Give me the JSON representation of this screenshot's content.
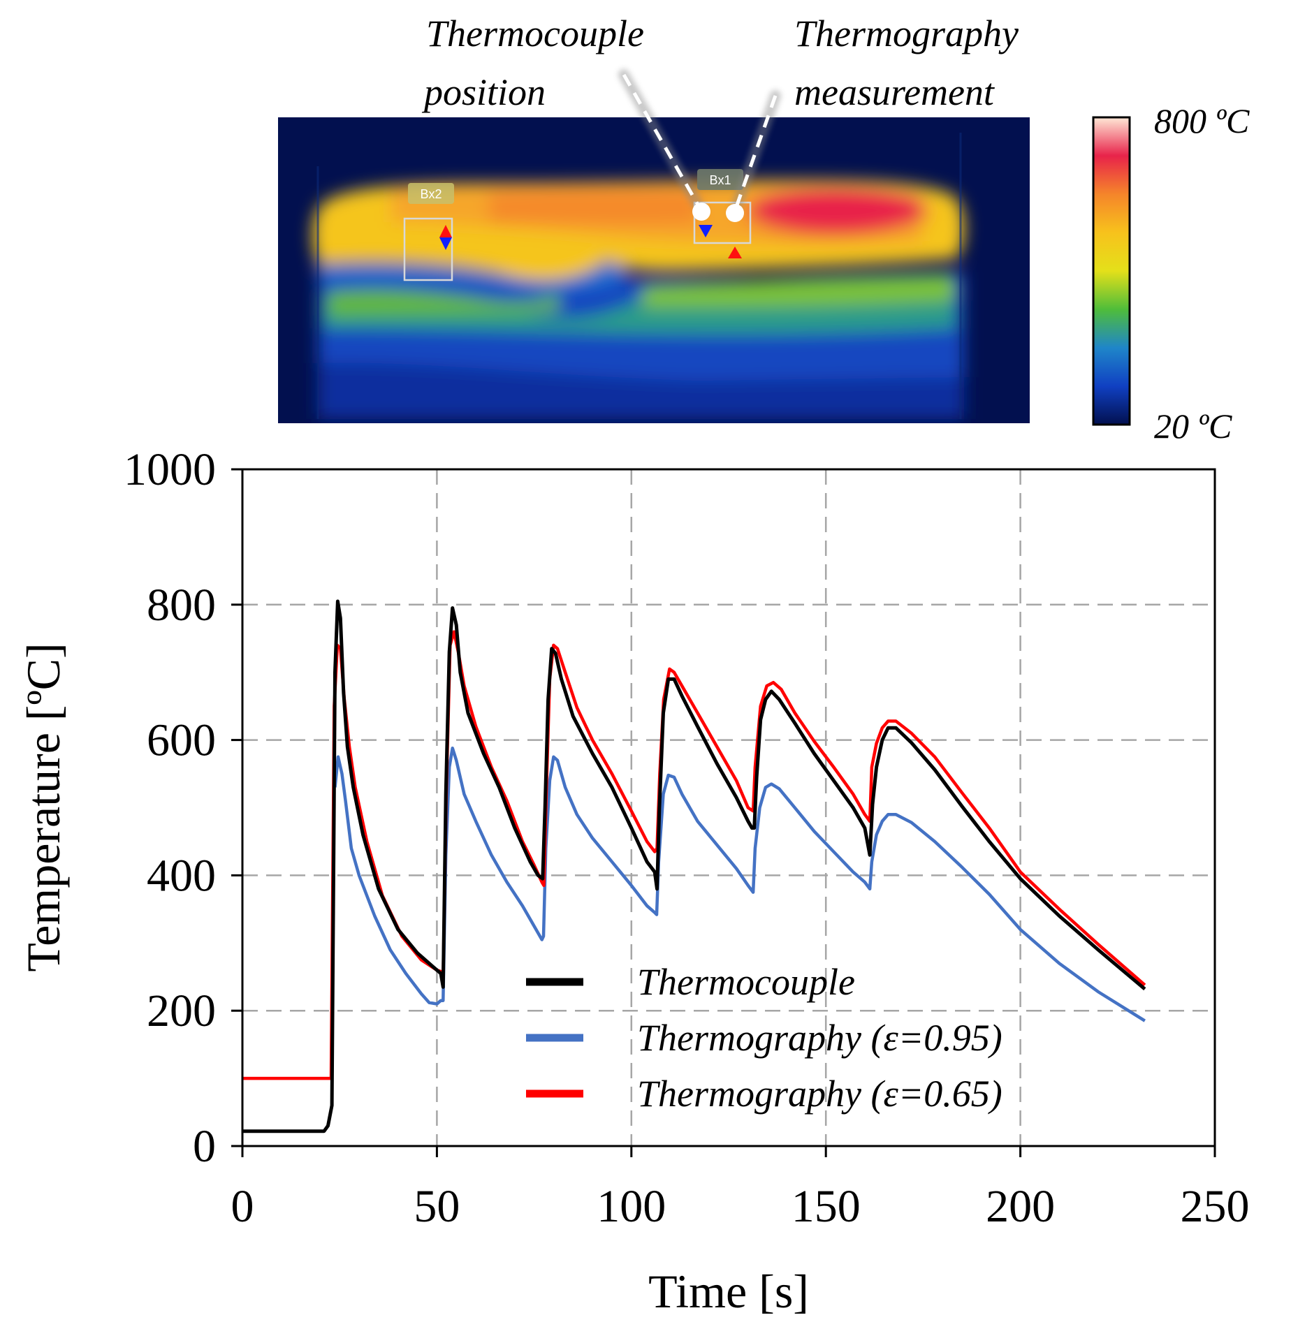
{
  "thermal_image": {
    "annotations": {
      "thermocouple_line1": "Thermocouple",
      "thermocouple_line2": "position",
      "thermography_line1": "Thermography",
      "thermography_line2": "measurement"
    },
    "boxes": {
      "bx1": "Bx1",
      "bx2": "Bx2"
    },
    "colorbar": {
      "max_label": "800 ºC",
      "min_label": "20 ºC",
      "stops": [
        "#ffe8d6",
        "#e8234a",
        "#f5852a",
        "#f7c21c",
        "#e4e01a",
        "#4fbd3a",
        "#1f86c9",
        "#1040c2",
        "#02104f"
      ]
    }
  },
  "chart_data": {
    "type": "line",
    "xlabel": "Time [s]",
    "ylabel": "Temperature [ºC]",
    "xlim": [
      0,
      250
    ],
    "ylim": [
      0,
      1000
    ],
    "xticks": [
      "0",
      "50",
      "100",
      "150",
      "200",
      "250"
    ],
    "yticks": [
      "0",
      "200",
      "400",
      "600",
      "800",
      "1000"
    ],
    "grid": "dashed",
    "legend_position": "center-bottom",
    "series": [
      {
        "name": "Thermocouple",
        "color": "#000000",
        "points": [
          [
            0,
            22
          ],
          [
            21,
            22
          ],
          [
            22,
            30
          ],
          [
            23,
            60
          ],
          [
            23.8,
            700
          ],
          [
            24.5,
            805
          ],
          [
            25.2,
            780
          ],
          [
            26,
            670
          ],
          [
            27,
            590
          ],
          [
            28.5,
            530
          ],
          [
            31,
            460
          ],
          [
            35,
            380
          ],
          [
            40,
            320
          ],
          [
            45,
            285
          ],
          [
            49,
            265
          ],
          [
            51,
            255
          ],
          [
            51.6,
            235
          ],
          [
            52.3,
            520
          ],
          [
            53.2,
            730
          ],
          [
            54,
            795
          ],
          [
            55,
            770
          ],
          [
            56,
            700
          ],
          [
            58,
            640
          ],
          [
            62,
            580
          ],
          [
            66,
            530
          ],
          [
            70,
            470
          ],
          [
            74,
            420
          ],
          [
            76,
            400
          ],
          [
            77.2,
            395
          ],
          [
            77.8,
            500
          ],
          [
            78.6,
            660
          ],
          [
            79.5,
            735
          ],
          [
            80.5,
            728
          ],
          [
            82,
            690
          ],
          [
            85,
            635
          ],
          [
            90,
            580
          ],
          [
            95,
            530
          ],
          [
            100,
            470
          ],
          [
            104,
            420
          ],
          [
            106,
            405
          ],
          [
            106.6,
            380
          ],
          [
            107.2,
            500
          ],
          [
            108.2,
            640
          ],
          [
            109.5,
            690
          ],
          [
            111,
            690
          ],
          [
            113,
            665
          ],
          [
            117,
            620
          ],
          [
            122,
            565
          ],
          [
            127,
            515
          ],
          [
            130,
            480
          ],
          [
            131,
            470
          ],
          [
            131.6,
            470
          ],
          [
            132.2,
            545
          ],
          [
            133.2,
            630
          ],
          [
            134.5,
            660
          ],
          [
            136,
            672
          ],
          [
            138,
            660
          ],
          [
            142,
            625
          ],
          [
            147,
            580
          ],
          [
            152,
            540
          ],
          [
            157,
            500
          ],
          [
            160,
            470
          ],
          [
            161.3,
            430
          ],
          [
            162,
            505
          ],
          [
            163,
            560
          ],
          [
            164.5,
            600
          ],
          [
            166,
            618
          ],
          [
            168,
            618
          ],
          [
            172,
            596
          ],
          [
            178,
            556
          ],
          [
            185,
            502
          ],
          [
            192,
            450
          ],
          [
            200,
            395
          ],
          [
            210,
            340
          ],
          [
            220,
            290
          ],
          [
            232,
            232
          ]
        ]
      },
      {
        "name": "Thermography (ε=0.95)",
        "color": "#4472c4",
        "points": [
          [
            23.8,
            530
          ],
          [
            24.6,
            575
          ],
          [
            25.6,
            550
          ],
          [
            26.5,
            510
          ],
          [
            28,
            440
          ],
          [
            30,
            400
          ],
          [
            34,
            340
          ],
          [
            38,
            290
          ],
          [
            42,
            255
          ],
          [
            46,
            225
          ],
          [
            48,
            212
          ],
          [
            50,
            210
          ],
          [
            51,
            215
          ],
          [
            51.6,
            215
          ],
          [
            52.3,
            430
          ],
          [
            53.2,
            560
          ],
          [
            54,
            588
          ],
          [
            55,
            570
          ],
          [
            57,
            520
          ],
          [
            60,
            480
          ],
          [
            64,
            430
          ],
          [
            68,
            390
          ],
          [
            72,
            355
          ],
          [
            75,
            325
          ],
          [
            77,
            305
          ],
          [
            77.4,
            310
          ],
          [
            78,
            440
          ],
          [
            79,
            540
          ],
          [
            80,
            575
          ],
          [
            81,
            570
          ],
          [
            83,
            530
          ],
          [
            86,
            490
          ],
          [
            90,
            455
          ],
          [
            95,
            420
          ],
          [
            100,
            385
          ],
          [
            104,
            355
          ],
          [
            106,
            345
          ],
          [
            106.5,
            342
          ],
          [
            107,
            420
          ],
          [
            108.2,
            520
          ],
          [
            109.5,
            548
          ],
          [
            111,
            545
          ],
          [
            113,
            520
          ],
          [
            117,
            480
          ],
          [
            122,
            445
          ],
          [
            127,
            410
          ],
          [
            130,
            385
          ],
          [
            131.3,
            375
          ],
          [
            131.8,
            440
          ],
          [
            133,
            500
          ],
          [
            134.5,
            530
          ],
          [
            136,
            535
          ],
          [
            138,
            528
          ],
          [
            142,
            500
          ],
          [
            147,
            465
          ],
          [
            152,
            435
          ],
          [
            157,
            405
          ],
          [
            160,
            390
          ],
          [
            161.3,
            380
          ],
          [
            161.8,
            420
          ],
          [
            163,
            460
          ],
          [
            164.5,
            480
          ],
          [
            166,
            490
          ],
          [
            168,
            490
          ],
          [
            172,
            478
          ],
          [
            178,
            450
          ],
          [
            185,
            412
          ],
          [
            192,
            372
          ],
          [
            200,
            320
          ],
          [
            210,
            270
          ],
          [
            220,
            228
          ],
          [
            232,
            185
          ]
        ]
      },
      {
        "name": "Thermography (ε=0.65)",
        "color": "#ff0000",
        "points": [
          [
            0,
            100
          ],
          [
            22,
            100
          ],
          [
            22.8,
            100
          ],
          [
            23.6,
            650
          ],
          [
            24.4,
            740
          ],
          [
            25.2,
            735
          ],
          [
            26.2,
            660
          ],
          [
            27.5,
            590
          ],
          [
            29,
            530
          ],
          [
            32,
            450
          ],
          [
            36,
            370
          ],
          [
            41,
            310
          ],
          [
            46,
            275
          ],
          [
            50,
            260
          ],
          [
            51,
            258
          ],
          [
            51.6,
            250
          ],
          [
            52.4,
            520
          ],
          [
            53.4,
            740
          ],
          [
            54.4,
            760
          ],
          [
            55.5,
            730
          ],
          [
            57,
            680
          ],
          [
            60,
            620
          ],
          [
            64,
            560
          ],
          [
            68,
            510
          ],
          [
            72,
            450
          ],
          [
            75,
            415
          ],
          [
            77,
            390
          ],
          [
            77.5,
            385
          ],
          [
            78.1,
            520
          ],
          [
            79,
            690
          ],
          [
            80,
            740
          ],
          [
            81,
            735
          ],
          [
            83,
            700
          ],
          [
            86,
            648
          ],
          [
            90,
            600
          ],
          [
            95,
            550
          ],
          [
            100,
            495
          ],
          [
            104,
            450
          ],
          [
            106,
            435
          ],
          [
            106.6,
            440
          ],
          [
            107.3,
            550
          ],
          [
            108.3,
            660
          ],
          [
            109.8,
            705
          ],
          [
            111,
            700
          ],
          [
            113,
            680
          ],
          [
            117,
            640
          ],
          [
            122,
            590
          ],
          [
            127,
            540
          ],
          [
            130,
            500
          ],
          [
            131.3,
            495
          ],
          [
            131.8,
            560
          ],
          [
            133.2,
            650
          ],
          [
            134.8,
            680
          ],
          [
            136.5,
            685
          ],
          [
            138.5,
            675
          ],
          [
            142,
            640
          ],
          [
            147,
            598
          ],
          [
            152,
            560
          ],
          [
            157,
            520
          ],
          [
            160,
            490
          ],
          [
            161.3,
            480
          ],
          [
            161.8,
            560
          ],
          [
            163,
            595
          ],
          [
            164.5,
            618
          ],
          [
            166,
            628
          ],
          [
            168,
            628
          ],
          [
            172,
            610
          ],
          [
            178,
            575
          ],
          [
            185,
            522
          ],
          [
            192,
            470
          ],
          [
            200,
            405
          ],
          [
            210,
            350
          ],
          [
            220,
            298
          ],
          [
            232,
            238
          ]
        ]
      }
    ]
  }
}
